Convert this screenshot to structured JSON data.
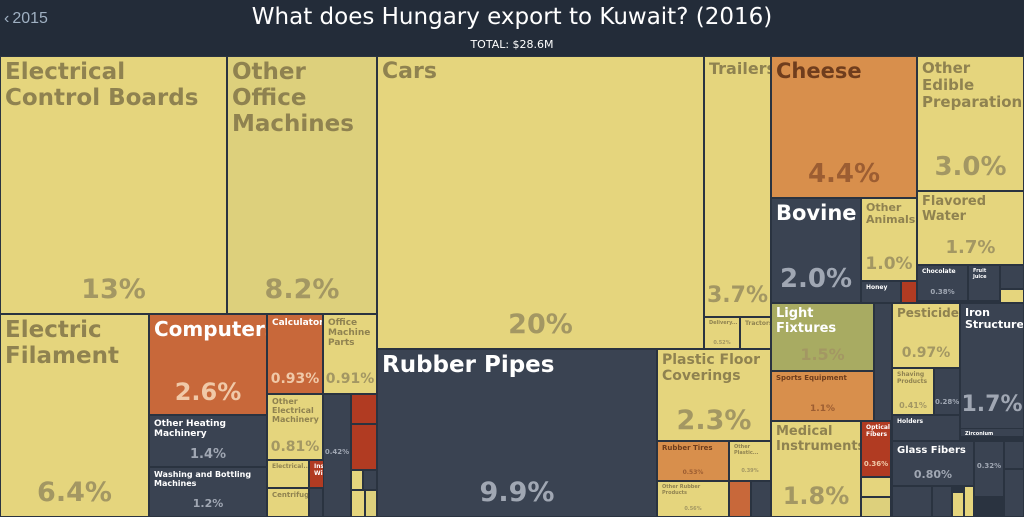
{
  "header": {
    "back_label": "2015",
    "title": "What does Hungary export to Kuwait? (2016)",
    "total": "TOTAL: $28.6M"
  },
  "colors": {
    "yellow": "#e5d57d",
    "yellow_dark": "#ddd07c",
    "orange": "#d88f4c",
    "orange_rust": "#c8683a",
    "red": "#b13b22",
    "navy": "#3a4352",
    "olive": "#a8ab62",
    "text_yellow": "#a39763",
    "text_orange": "#9c5d32",
    "text_navy_pct": "#a0a7b3"
  },
  "chart_data": {
    "type": "treemap",
    "title": "What does Hungary export to Kuwait? (2016)",
    "total": "TOTAL: $28.6M",
    "tiles": [
      {
        "name": "Electrical Control Boards",
        "share": "13%"
      },
      {
        "name": "Other Office Machines",
        "share": "8.2%"
      },
      {
        "name": "Electric Filament",
        "share": "6.4%"
      },
      {
        "name": "Computers",
        "share": "2.6%"
      },
      {
        "name": "Calculators",
        "share": "0.93%"
      },
      {
        "name": "Office Machine Parts",
        "share": "0.91%"
      },
      {
        "name": "Other Heating Machinery",
        "share": "1.4%"
      },
      {
        "name": "Washing and Bottling Machines",
        "share": "1.2%"
      },
      {
        "name": "Other Electrical Machinery",
        "share": "0.81%"
      },
      {
        "name": "Electrical...",
        "share": ""
      },
      {
        "name": "Insulated Wire",
        "share": ""
      },
      {
        "name": "Centrifuges",
        "share": ""
      },
      {
        "name": "",
        "share": "0.42%"
      },
      {
        "name": "Cars",
        "share": "20%"
      },
      {
        "name": "Trailers",
        "share": "3.7%"
      },
      {
        "name": "Delivery...",
        "share": "0.52%"
      },
      {
        "name": "Tractors",
        "share": ""
      },
      {
        "name": "Rubber Pipes",
        "share": "9.9%"
      },
      {
        "name": "Plastic Floor Coverings",
        "share": "2.3%"
      },
      {
        "name": "Rubber Tires",
        "share": "0.53%"
      },
      {
        "name": "Other Plastic...",
        "share": "0.39%"
      },
      {
        "name": "Other Rubber Products",
        "share": "0.56%"
      },
      {
        "name": "Cheese",
        "share": "4.4%"
      },
      {
        "name": "Other Edible Preparations",
        "share": "3.0%"
      },
      {
        "name": "Flavored Water",
        "share": "1.7%"
      },
      {
        "name": "Bovine",
        "share": "2.0%"
      },
      {
        "name": "Other Animals",
        "share": "1.0%"
      },
      {
        "name": "Honey",
        "share": ""
      },
      {
        "name": "Chocolate",
        "share": "0.38%"
      },
      {
        "name": "Fruit Juice",
        "share": ""
      },
      {
        "name": "Light Fixtures",
        "share": "1.5%"
      },
      {
        "name": "Sports Equipment",
        "share": "1.1%"
      },
      {
        "name": "Pesticides",
        "share": "0.97%"
      },
      {
        "name": "Shaving Products",
        "share": "0.41%"
      },
      {
        "name": "",
        "share": "0.28%"
      },
      {
        "name": "Iron Structures",
        "share": "1.7%"
      },
      {
        "name": "Medical Instruments",
        "share": "1.8%"
      },
      {
        "name": "Optical Fibers",
        "share": "0.36%"
      },
      {
        "name": "Holders",
        "share": ""
      },
      {
        "name": "Zirconium",
        "share": ""
      },
      {
        "name": "Glass Fibers",
        "share": "0.80%"
      },
      {
        "name": "",
        "share": "0.32%"
      }
    ]
  }
}
